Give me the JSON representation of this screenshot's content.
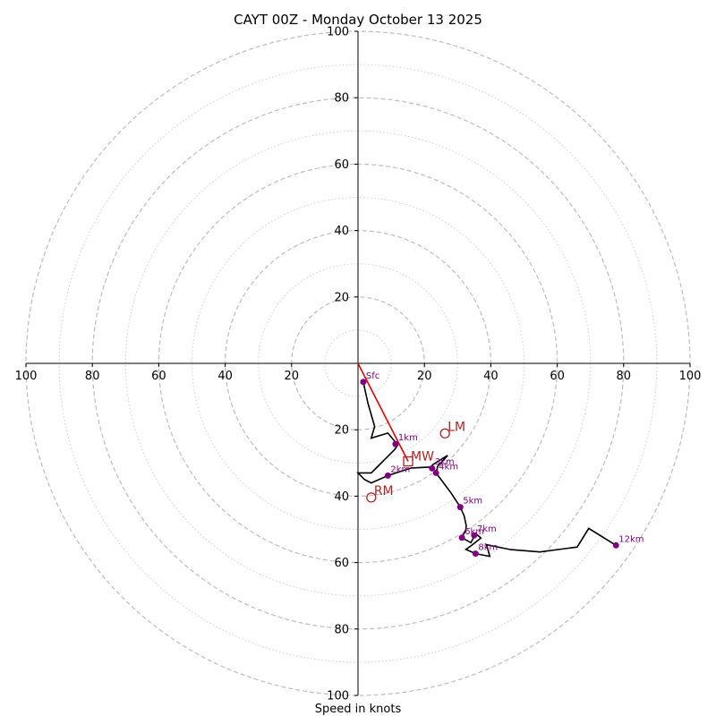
{
  "chart_data": {
    "type": "hodograph",
    "title": "CAYT 00Z - Monday October 13 2025",
    "xlabel": "Speed in knots",
    "range": [
      -100,
      100
    ],
    "rings_major": [
      20,
      40,
      60,
      80,
      100
    ],
    "rings_minor": [
      10,
      30,
      50,
      70,
      90
    ],
    "x_ticks": [
      {
        "value": -100,
        "label": "100"
      },
      {
        "value": -80,
        "label": "80"
      },
      {
        "value": -60,
        "label": "60"
      },
      {
        "value": -40,
        "label": "40"
      },
      {
        "value": -20,
        "label": "20"
      },
      {
        "value": 20,
        "label": "20"
      },
      {
        "value": 40,
        "label": "40"
      },
      {
        "value": 60,
        "label": "60"
      },
      {
        "value": 80,
        "label": "80"
      },
      {
        "value": 100,
        "label": "100"
      }
    ],
    "y_ticks": [
      {
        "value": 100,
        "label": "100"
      },
      {
        "value": 80,
        "label": "80"
      },
      {
        "value": 60,
        "label": "60"
      },
      {
        "value": 40,
        "label": "40"
      },
      {
        "value": 20,
        "label": "20"
      },
      {
        "value": -20,
        "label": "20"
      },
      {
        "value": -40,
        "label": "40"
      },
      {
        "value": -60,
        "label": "60"
      },
      {
        "value": -80,
        "label": "80"
      },
      {
        "value": -100,
        "label": "100"
      }
    ],
    "hodograph": [
      [
        1.6,
        -5.6
      ],
      [
        3,
        -12
      ],
      [
        5,
        -19
      ],
      [
        4,
        -22.5
      ],
      [
        9,
        -21
      ],
      [
        12,
        -24.6
      ],
      [
        11,
        -26
      ],
      [
        8,
        -29
      ],
      [
        6,
        -31
      ],
      [
        4,
        -33
      ],
      [
        0,
        -33
      ],
      [
        2,
        -35
      ],
      [
        4,
        -36
      ],
      [
        9,
        -33.8
      ],
      [
        16,
        -31.5
      ],
      [
        22,
        -31.2
      ],
      [
        22.5,
        -30.5
      ],
      [
        27,
        -27.7
      ],
      [
        24,
        -31
      ],
      [
        23.5,
        -33
      ],
      [
        28,
        -39
      ],
      [
        30.8,
        -43.3
      ],
      [
        32,
        -46
      ],
      [
        32.6,
        -48.8
      ],
      [
        32.5,
        -50
      ],
      [
        31.3,
        -52.5
      ],
      [
        34,
        -54
      ],
      [
        35.5,
        -51.3
      ],
      [
        37,
        -52.6
      ],
      [
        36,
        -53.4
      ],
      [
        34,
        -55
      ],
      [
        32.5,
        -56
      ],
      [
        35.4,
        -57.3
      ],
      [
        39.7,
        -58.1
      ],
      [
        38.7,
        -54.6
      ],
      [
        46,
        -56.1
      ],
      [
        54.8,
        -56.8
      ],
      [
        66,
        -55.3
      ],
      [
        69.5,
        -49.7
      ],
      [
        77.7,
        -54.8
      ]
    ],
    "height_markers": [
      {
        "label": "Sfc",
        "u": 1.6,
        "v": -5.6
      },
      {
        "label": "1km",
        "u": 11.3,
        "v": -24.3
      },
      {
        "label": "2km",
        "u": 9.0,
        "v": -33.8
      },
      {
        "label": "3km",
        "u": 22.3,
        "v": -31.6
      },
      {
        "label": "4km",
        "u": 23.5,
        "v": -33.0
      },
      {
        "label": "5km",
        "u": 30.8,
        "v": -43.3
      },
      {
        "label": "6km",
        "u": 31.3,
        "v": -52.5
      },
      {
        "label": "7km",
        "u": 35.0,
        "v": -51.8
      },
      {
        "label": "8km",
        "u": 35.4,
        "v": -57.3
      },
      {
        "label": "12km",
        "u": 77.7,
        "v": -54.8
      }
    ],
    "storm_motion": {
      "MW": {
        "label": "MW",
        "u": 15.1,
        "v": -29.5
      },
      "LM": {
        "label": "LM",
        "u": 26.2,
        "v": -21.1
      },
      "RM": {
        "label": "RM",
        "u": 4.0,
        "v": -40.4
      }
    }
  }
}
